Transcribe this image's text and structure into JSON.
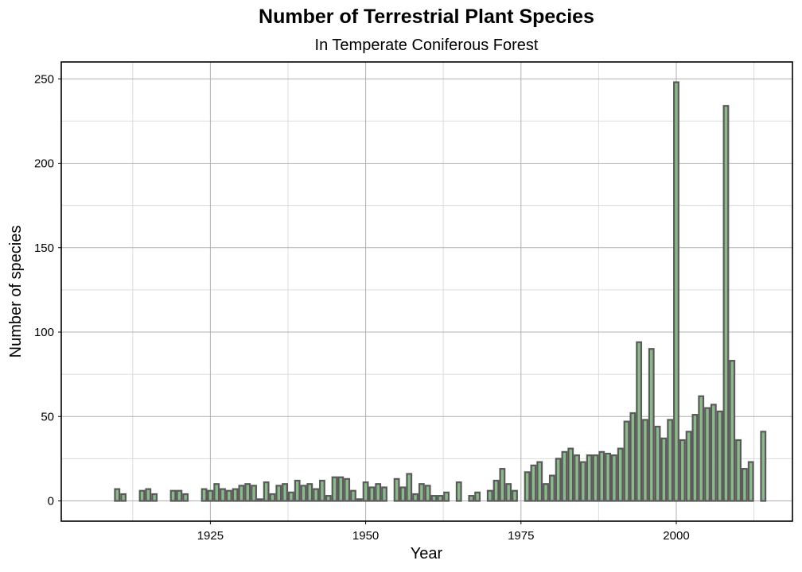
{
  "chart_data": {
    "type": "bar",
    "title": "Number of Terrestrial Plant Species",
    "subtitle": "In Temperate Coniferous Forest",
    "xlabel": "Year",
    "ylabel": "Number of species",
    "xlim": [
      1901,
      2018.7
    ],
    "ylim": [
      -12,
      260
    ],
    "x_ticks": [
      1925,
      1950,
      1975,
      2000
    ],
    "y_ticks": [
      0,
      50,
      100,
      150,
      200,
      250
    ],
    "x_minor_step": 12.5,
    "y_minor_step": 25,
    "grid": true,
    "colors": {
      "bar_fill": "#8cb98c",
      "bar_edge": "#5a5a5a"
    },
    "x": [
      1910,
      1911,
      1914,
      1915,
      1916,
      1919,
      1920,
      1921,
      1924,
      1925,
      1926,
      1927,
      1928,
      1929,
      1930,
      1931,
      1932,
      1933,
      1934,
      1935,
      1936,
      1937,
      1938,
      1939,
      1940,
      1941,
      1942,
      1943,
      1944,
      1945,
      1946,
      1947,
      1948,
      1949,
      1950,
      1951,
      1952,
      1953,
      1955,
      1956,
      1957,
      1958,
      1959,
      1960,
      1961,
      1962,
      1963,
      1965,
      1967,
      1968,
      1970,
      1971,
      1972,
      1973,
      1974,
      1976,
      1977,
      1978,
      1979,
      1980,
      1981,
      1982,
      1983,
      1984,
      1985,
      1986,
      1987,
      1988,
      1989,
      1990,
      1991,
      1992,
      1993,
      1994,
      1995,
      1996,
      1997,
      1998,
      1999,
      2000,
      2001,
      2002,
      2003,
      2004,
      2005,
      2006,
      2007,
      2008,
      2009,
      2010,
      2011,
      2012,
      2014
    ],
    "values": [
      7,
      4,
      6,
      7,
      4,
      6,
      6,
      4,
      7,
      6,
      10,
      7,
      6,
      7,
      9,
      10,
      9,
      1,
      11,
      4,
      9,
      10,
      5,
      12,
      9,
      10,
      7,
      12,
      3,
      14,
      14,
      13,
      6,
      1,
      11,
      8,
      10,
      8,
      13,
      8,
      16,
      4,
      10,
      9,
      3,
      3,
      5,
      11,
      3,
      5,
      6,
      12,
      19,
      10,
      6,
      17,
      21,
      23,
      10,
      15,
      25,
      29,
      31,
      27,
      23,
      27,
      27,
      29,
      28,
      27,
      31,
      47,
      52,
      94,
      48,
      90,
      44,
      37,
      48,
      248,
      36,
      41,
      51,
      62,
      55,
      57,
      53,
      234,
      83,
      36,
      19,
      23,
      41
    ]
  }
}
